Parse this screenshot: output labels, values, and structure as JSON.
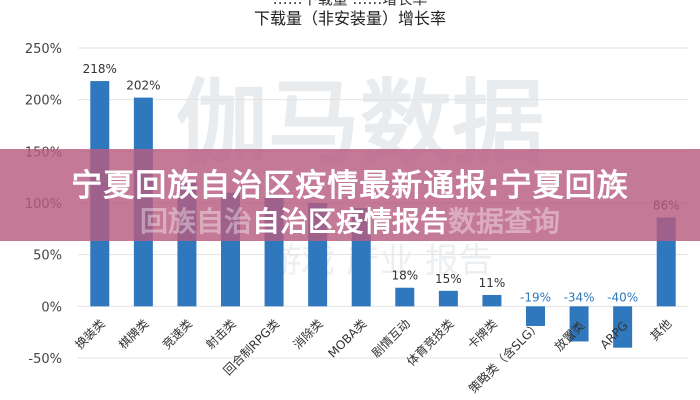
{
  "chart_data": {
    "type": "bar",
    "title_top": "……下载量 ……增长率",
    "title": "下载量（非安装量）增长率",
    "categories": [
      "换装类",
      "棋牌类",
      "竞速类",
      "射击类",
      "回合制RPG类",
      "消除类",
      "MOBA类",
      "剧情互动",
      "体育竞技类",
      "卡牌类",
      "策略类（含SLG）",
      "放置类",
      "ARPG",
      "其他"
    ],
    "values": [
      218,
      202,
      120,
      110,
      105,
      100,
      95,
      18,
      15,
      11,
      -19,
      -34,
      -40,
      86
    ],
    "value_labels": [
      "218%",
      "202%",
      "",
      "",
      "",
      "",
      "",
      "18%",
      "15%",
      "11%",
      "-19%",
      "-34%",
      "-40%",
      "86%"
    ],
    "yticks": [
      "250%",
      "200%",
      "150%",
      "100%",
      "50%",
      "0%",
      "-50%"
    ],
    "ylim": [
      -50,
      250
    ],
    "color": "#2f78bd",
    "grid": true,
    "legend": "none"
  },
  "watermark": {
    "line1": "伽马数据",
    "line2": "游戏 产业 报告"
  },
  "banner": {
    "line1": "宁夏回族自治区疫情最新通报:宁夏回族",
    "line2_ghost_left": "回族自治",
    "line2_main": "自治区疫情报告",
    "line2_ghost_right": "数据查询"
  }
}
